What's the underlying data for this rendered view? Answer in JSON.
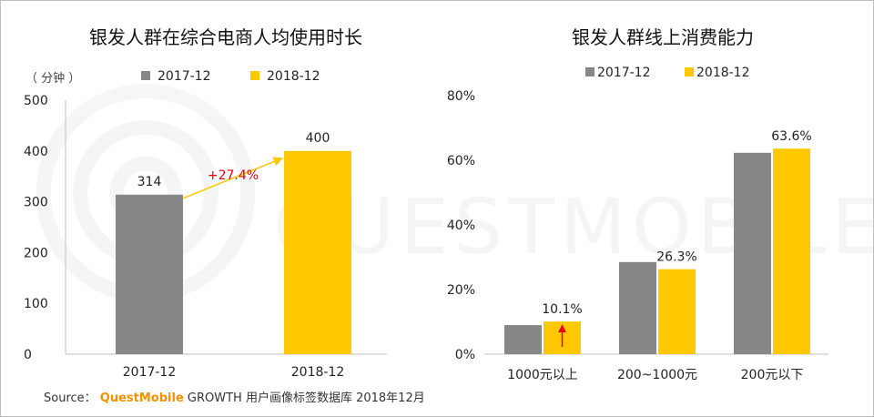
{
  "chart_data": [
    {
      "type": "bar",
      "title": "银发人群在综合电商人均使用时长",
      "unit_label": "（ 分钟 ）",
      "categories": [
        "2017-12",
        "2018-12"
      ],
      "legend": [
        "2017-12",
        "2018-12"
      ],
      "values": [
        314,
        400
      ],
      "data_labels": [
        "314",
        "400"
      ],
      "colors": [
        "#878787",
        "#ffc800"
      ],
      "ylim": [
        0,
        500
      ],
      "yticks": [
        "0",
        "100",
        "200",
        "300",
        "400",
        "500"
      ],
      "annotation": "+27.4%",
      "annotation_color": "#e60012",
      "arrow_color": "#ffc800",
      "grid": false
    },
    {
      "type": "bar",
      "title": "银发人群线上消费能力",
      "categories": [
        "1000元以上",
        "200~1000元",
        "200元以下"
      ],
      "series": [
        {
          "name": "2017-12",
          "values": [
            9.0,
            28.5,
            62.3
          ],
          "color": "#878787"
        },
        {
          "name": "2018-12",
          "values": [
            10.1,
            26.3,
            63.6
          ],
          "color": "#ffc800"
        }
      ],
      "data_labels": [
        "10.1%",
        "26.3%",
        "63.6%"
      ],
      "ylim": [
        0,
        80
      ],
      "yticks": [
        "0%",
        "20%",
        "40%",
        "60%",
        "80%"
      ],
      "arrow_color": "#e60012",
      "grid": false
    }
  ],
  "watermark": "QUESTMOBILE",
  "source": {
    "prefix": "Source：",
    "brand": "QuestMobile",
    "text": " GROWTH 用户画像标签数据库 2018年12月"
  }
}
